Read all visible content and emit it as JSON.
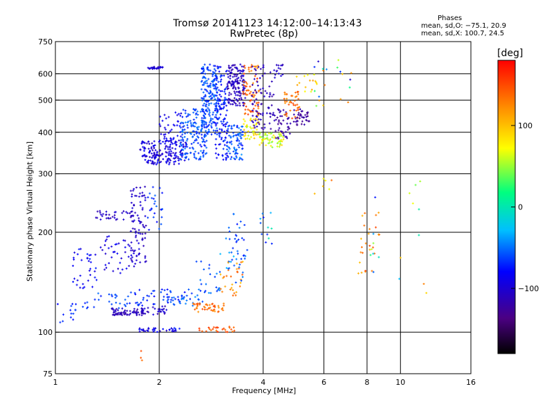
{
  "title": {
    "line1": "Tromsø 20141123 14:12:00–14:13:43",
    "line2": "RwPretec (8p)"
  },
  "phase_info": {
    "heading": "Phases",
    "line_o": "mean, sd,O: −75.1, 20.9",
    "line_x": "mean, sd,X: 100.7, 24.5"
  },
  "colorbar": {
    "unit": "[deg]",
    "ticks": [
      {
        "value": 100,
        "label": "100"
      },
      {
        "value": 0,
        "label": "0"
      },
      {
        "value": -100,
        "label": "−100"
      }
    ],
    "range": [
      -180,
      180
    ],
    "colors": [
      "#000000",
      "#4b0082",
      "#0000ff",
      "#00bfff",
      "#00ff7f",
      "#ffff00",
      "#ff8c00",
      "#ff0000"
    ]
  },
  "chart_data": {
    "type": "scatter",
    "title": "Tromsø 20141123 14:12:00–14:13:43",
    "subtitle": "RwPretec (8p)",
    "xlabel": "Frequency [MHz]",
    "ylabel": "Stationary phase Virtual Height [km]",
    "x_scale": "log",
    "y_scale": "log",
    "xlim": [
      1,
      16
    ],
    "ylim": [
      75,
      750
    ],
    "xticks": [
      1,
      2,
      4,
      6,
      8,
      10,
      16
    ],
    "yticks": [
      75,
      100,
      200,
      300,
      400,
      500,
      600,
      750
    ],
    "grid": true,
    "color_by": "phase_deg",
    "clusters": [
      {
        "x": [
          1.0,
          1.15
        ],
        "y": [
          105,
          122
        ],
        "phase": [
          -80,
          -60
        ],
        "n": 15
      },
      {
        "x": [
          1.12,
          1.35
        ],
        "y": [
          135,
          180
        ],
        "phase": [
          -95,
          -70
        ],
        "n": 35
      },
      {
        "x": [
          1.35,
          1.75
        ],
        "y": [
          150,
          195
        ],
        "phase": [
          -105,
          -80
        ],
        "n": 45
      },
      {
        "x": [
          1.3,
          1.75
        ],
        "y": [
          218,
          232
        ],
        "phase": [
          -115,
          -95
        ],
        "n": 35
      },
      {
        "x": [
          1.65,
          1.85
        ],
        "y": [
          160,
          275
        ],
        "phase": [
          -115,
          -95
        ],
        "n": 80
      },
      {
        "x": [
          1.85,
          2.05
        ],
        "y": [
          200,
          275
        ],
        "phase": [
          -80,
          -50
        ],
        "n": 25
      },
      {
        "x": [
          1.45,
          1.8
        ],
        "y": [
          112,
          118
        ],
        "phase": [
          -120,
          -100
        ],
        "n": 70
      },
      {
        "x": [
          1.8,
          2.1
        ],
        "y": [
          113,
          120
        ],
        "phase": [
          -120,
          -90
        ],
        "n": 25
      },
      {
        "x": [
          1.2,
          1.6
        ],
        "y": [
          118,
          132
        ],
        "phase": [
          -75,
          -50
        ],
        "n": 25
      },
      {
        "x": [
          1.6,
          1.95
        ],
        "y": [
          120,
          135
        ],
        "phase": [
          -80,
          -55
        ],
        "n": 25
      },
      {
        "x": [
          1.75,
          2.3
        ],
        "y": [
          100,
          103
        ],
        "phase": [
          -110,
          -70
        ],
        "n": 35
      },
      {
        "x": [
          2.0,
          2.5
        ],
        "y": [
          122,
          135
        ],
        "phase": [
          -80,
          -55
        ],
        "n": 30
      },
      {
        "x": [
          2.15,
          2.7
        ],
        "y": [
          120,
          128
        ],
        "phase": [
          -60,
          -40
        ],
        "n": 20
      },
      {
        "x": [
          2.5,
          3.1
        ],
        "y": [
          115,
          122
        ],
        "phase": [
          120,
          150
        ],
        "n": 45
      },
      {
        "x": [
          2.55,
          3.3
        ],
        "y": [
          100,
          104
        ],
        "phase": [
          130,
          160
        ],
        "n": 25
      },
      {
        "x": [
          2.55,
          3.0
        ],
        "y": [
          128,
          165
        ],
        "phase": [
          -70,
          -40
        ],
        "n": 25
      },
      {
        "x": [
          3.0,
          3.5
        ],
        "y": [
          128,
          165
        ],
        "phase": [
          100,
          150
        ],
        "n": 30
      },
      {
        "x": [
          3.1,
          3.6
        ],
        "y": [
          165,
          230
        ],
        "phase": [
          -75,
          -40
        ],
        "n": 30
      },
      {
        "x": [
          3.0,
          3.5
        ],
        "y": [
          140,
          190
        ],
        "phase": [
          -60,
          -30
        ],
        "n": 15
      },
      {
        "x": [
          1.75,
          1.82
        ],
        "y": [
          82,
          88
        ],
        "phase": [
          130,
          160
        ],
        "n": 3
      },
      {
        "x": [
          3.9,
          4.3
        ],
        "y": [
          180,
          230
        ],
        "phase": [
          -80,
          20
        ],
        "n": 12
      },
      {
        "x": [
          1.75,
          2.4
        ],
        "y": [
          320,
          380
        ],
        "phase": [
          -110,
          -80
        ],
        "n": 180
      },
      {
        "x": [
          2.0,
          2.35
        ],
        "y": [
          380,
          460
        ],
        "phase": [
          -100,
          -75
        ],
        "n": 40
      },
      {
        "x": [
          2.3,
          2.75
        ],
        "y": [
          330,
          470
        ],
        "phase": [
          -75,
          -45
        ],
        "n": 160
      },
      {
        "x": [
          2.65,
          2.95
        ],
        "y": [
          390,
          640
        ],
        "phase": [
          -75,
          -45
        ],
        "n": 190
      },
      {
        "x": [
          2.9,
          3.15
        ],
        "y": [
          330,
          640
        ],
        "phase": [
          -90,
          -60
        ],
        "n": 140
      },
      {
        "x": [
          3.15,
          3.5
        ],
        "y": [
          330,
          420
        ],
        "phase": [
          -80,
          -40
        ],
        "n": 80
      },
      {
        "x": [
          3.15,
          3.55
        ],
        "y": [
          480,
          640
        ],
        "phase": [
          -120,
          -95
        ],
        "n": 150
      },
      {
        "x": [
          3.5,
          3.9
        ],
        "y": [
          440,
          640
        ],
        "phase": [
          120,
          160
        ],
        "n": 70
      },
      {
        "x": [
          3.5,
          3.9
        ],
        "y": [
          380,
          440
        ],
        "phase": [
          50,
          100
        ],
        "n": 40
      },
      {
        "x": [
          3.7,
          4.3
        ],
        "y": [
          400,
          640
        ],
        "phase": [
          -125,
          -100
        ],
        "n": 80
      },
      {
        "x": [
          3.9,
          4.6
        ],
        "y": [
          360,
          400
        ],
        "phase": [
          40,
          90
        ],
        "n": 60
      },
      {
        "x": [
          4.3,
          4.8
        ],
        "y": [
          380,
          470
        ],
        "phase": [
          -130,
          -110
        ],
        "n": 45
      },
      {
        "x": [
          4.6,
          5.1
        ],
        "y": [
          440,
          530
        ],
        "phase": [
          115,
          155
        ],
        "n": 40
      },
      {
        "x": [
          4.9,
          5.5
        ],
        "y": [
          420,
          470
        ],
        "phase": [
          -135,
          -115
        ],
        "n": 35
      },
      {
        "x": [
          4.3,
          4.6
        ],
        "y": [
          580,
          640
        ],
        "phase": [
          -120,
          -95
        ],
        "n": 15
      },
      {
        "x": [
          5.0,
          5.8
        ],
        "y": [
          530,
          600
        ],
        "phase": [
          60,
          120
        ],
        "n": 15
      },
      {
        "x": [
          1.85,
          2.05
        ],
        "y": [
          620,
          630
        ],
        "phase": [
          -110,
          -90
        ],
        "n": 25
      },
      {
        "x": [
          5.6,
          7.2
        ],
        "y": [
          480,
          660
        ],
        "phase": [
          -120,
          140
        ],
        "n": 20
      },
      {
        "x": [
          5.5,
          6.5
        ],
        "y": [
          260,
          290
        ],
        "phase": [
          60,
          140
        ],
        "n": 6
      },
      {
        "x": [
          7.5,
          8.8
        ],
        "y": [
          150,
          240
        ],
        "phase": [
          100,
          160
        ],
        "n": 25
      },
      {
        "x": [
          8.0,
          8.7
        ],
        "y": [
          140,
          260
        ],
        "phase": [
          -110,
          60
        ],
        "n": 8
      },
      {
        "x": [
          9.5,
          12.0
        ],
        "y": [
          115,
          300
        ],
        "phase": [
          -40,
          150
        ],
        "n": 10
      }
    ]
  }
}
